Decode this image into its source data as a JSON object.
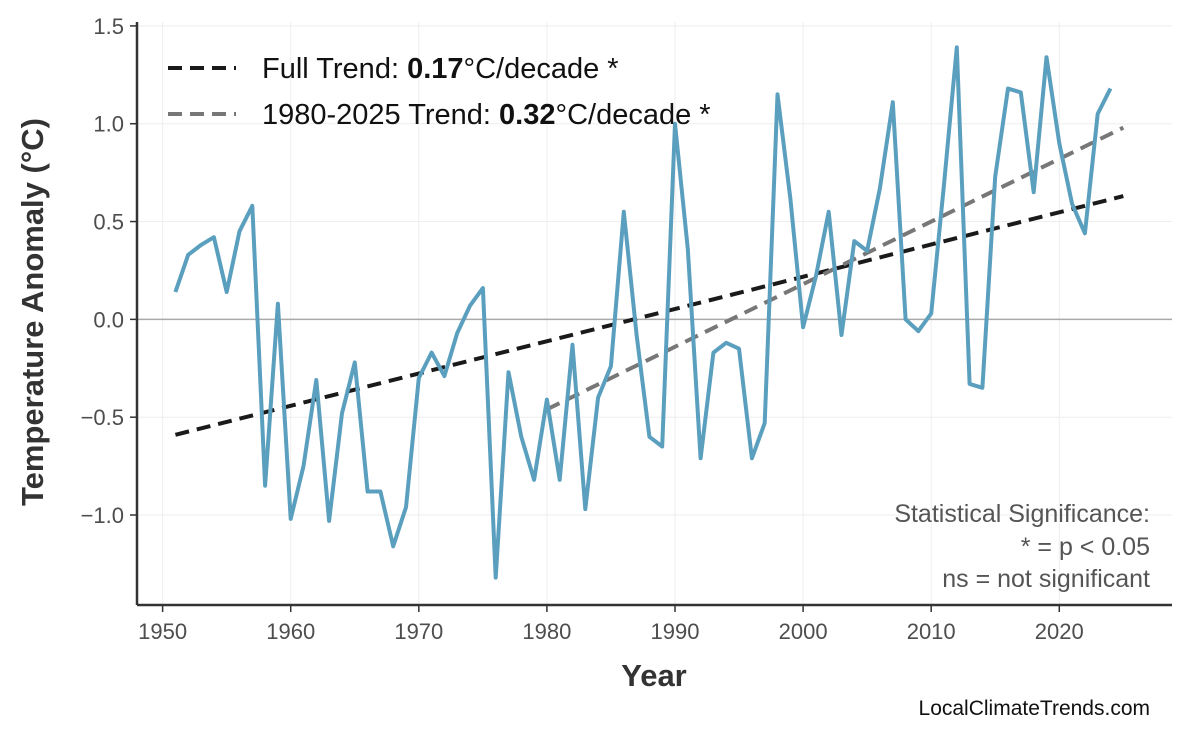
{
  "chart_data": {
    "type": "line",
    "title": "",
    "xlabel": "Year",
    "ylabel": "Temperature Anomaly (°C)",
    "xlim": [
      1948,
      2028.8
    ],
    "ylim": [
      -1.46,
      1.52
    ],
    "xticks": [
      1950,
      1960,
      1970,
      1980,
      1990,
      2000,
      2010,
      2020
    ],
    "yticks": [
      -1.0,
      -0.5,
      0.0,
      0.5,
      1.0,
      1.5
    ],
    "ytick_labels": [
      "−1.0",
      "−0.5",
      "0.0",
      "0.5",
      "1.0",
      "1.5"
    ],
    "grid": true,
    "zero_line": true,
    "legend_position": "top-left",
    "x": [
      1951,
      1952,
      1953,
      1954,
      1955,
      1956,
      1957,
      1958,
      1959,
      1960,
      1961,
      1962,
      1963,
      1964,
      1965,
      1966,
      1967,
      1968,
      1969,
      1970,
      1971,
      1972,
      1973,
      1974,
      1975,
      1976,
      1977,
      1978,
      1979,
      1980,
      1981,
      1982,
      1983,
      1984,
      1985,
      1986,
      1987,
      1988,
      1989,
      1990,
      1991,
      1992,
      1993,
      1994,
      1995,
      1996,
      1997,
      1998,
      1999,
      2000,
      2001,
      2002,
      2003,
      2004,
      2005,
      2006,
      2007,
      2008,
      2009,
      2010,
      2011,
      2012,
      2013,
      2014,
      2015,
      2016,
      2017,
      2018,
      2019,
      2020,
      2021,
      2022,
      2023,
      2024
    ],
    "series": [
      {
        "color": "#5b9fbf",
        "values": [
          0.14,
          0.33,
          0.38,
          0.42,
          0.14,
          0.45,
          0.58,
          -0.85,
          0.08,
          -1.02,
          -0.75,
          -0.31,
          -1.03,
          -0.48,
          -0.22,
          -0.88,
          -0.88,
          -1.16,
          -0.96,
          -0.3,
          -0.17,
          -0.29,
          -0.07,
          0.07,
          0.16,
          -1.32,
          -0.27,
          -0.6,
          -0.82,
          -0.41,
          -0.82,
          -0.13,
          -0.97,
          -0.4,
          -0.24,
          0.55,
          -0.08,
          -0.6,
          -0.65,
          1.0,
          0.36,
          -0.71,
          -0.17,
          -0.12,
          -0.15,
          -0.71,
          -0.53,
          1.15,
          0.62,
          -0.04,
          0.22,
          0.55,
          -0.08,
          0.4,
          0.35,
          0.67,
          1.11,
          0.0,
          -0.06,
          0.03,
          0.69,
          1.39,
          -0.33,
          -0.35,
          0.73,
          1.18,
          1.16,
          0.65,
          1.34,
          0.9,
          0.59,
          0.44,
          1.05,
          1.18
        ]
      }
    ],
    "trends": [
      {
        "label_prefix": "Full Trend: ",
        "rate": "0.17",
        "label_suffix": "°C/decade *",
        "color": "#1a1a1a",
        "x": [
          1951,
          2025
        ],
        "y": [
          -0.59,
          0.63
        ]
      },
      {
        "label_prefix": "1980-2025 Trend: ",
        "rate": "0.32",
        "label_suffix": "°C/decade *",
        "color": "#777777",
        "x": [
          1980,
          2025
        ],
        "y": [
          -0.46,
          0.98
        ]
      }
    ],
    "annotation": [
      "Statistical Significance:",
      "* = p < 0.05",
      "ns = not significant"
    ],
    "credit": "LocalClimateTrends.com"
  }
}
